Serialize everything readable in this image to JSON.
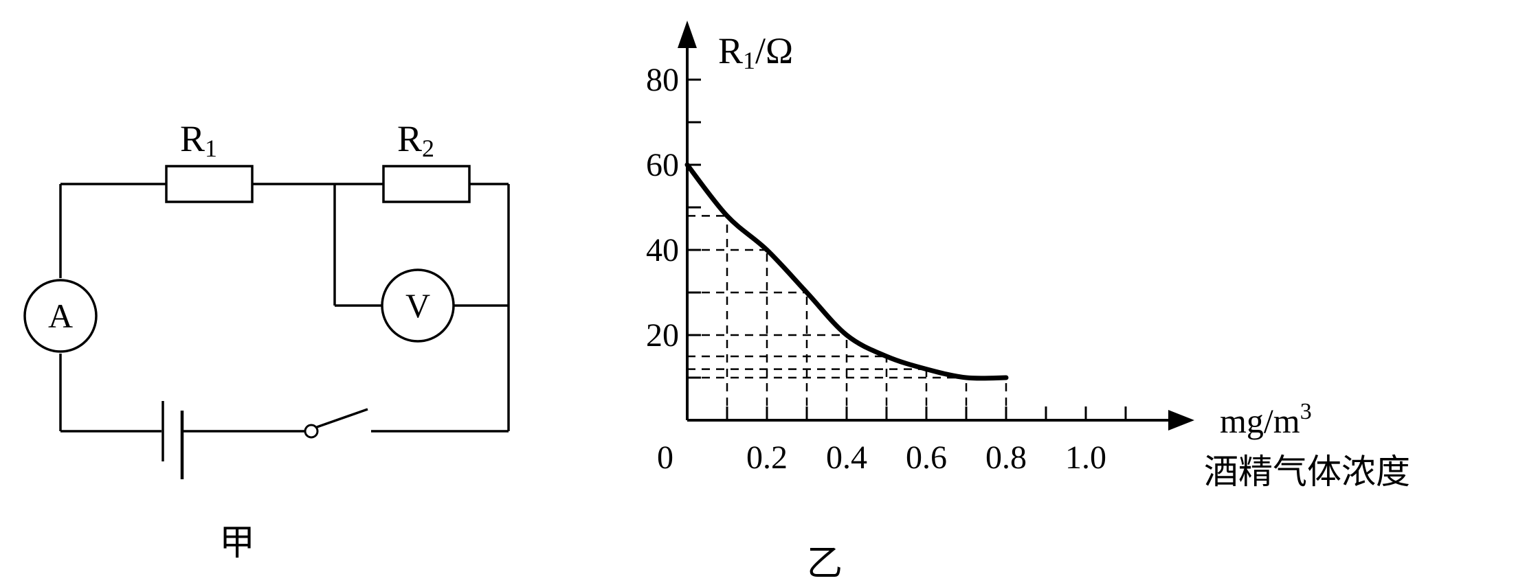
{
  "circuit": {
    "r1_label": "R",
    "r1_sub": "1",
    "r2_label": "R",
    "r2_sub": "2",
    "ammeter_label": "A",
    "voltmeter_label": "V",
    "caption": "甲"
  },
  "graph": {
    "caption": "乙",
    "y_axis_label": "R",
    "y_axis_sub": "1",
    "y_axis_unit": "/Ω",
    "x_unit": "mg/m",
    "x_unit_sup": "3",
    "x_name": "酒精气体浓度",
    "origin_label": "0",
    "y_ticks": [
      "20",
      "40",
      "60",
      "80"
    ],
    "x_ticks": [
      "0.2",
      "0.4",
      "0.6",
      "0.8",
      "1.0"
    ]
  },
  "chart_data": {
    "type": "line",
    "xlabel": "酒精气体浓度 mg/m3",
    "ylabel": "R1/Ω",
    "xlim": [
      0,
      1.2
    ],
    "ylim": [
      0,
      90
    ],
    "x": [
      0,
      0.1,
      0.2,
      0.3,
      0.4,
      0.5,
      0.6,
      0.7,
      0.8
    ],
    "y": [
      60,
      48,
      40,
      30,
      20,
      15,
      12,
      10,
      10
    ],
    "grid": "dashed, under curve only"
  }
}
